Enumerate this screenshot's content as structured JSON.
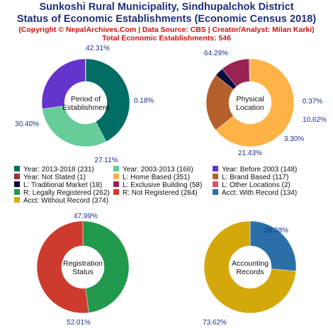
{
  "header": {
    "title_line1": "Sunkoshi Rural Municipality, Sindhupalchok District",
    "title_line2": "Status of Economic Establishments (Economic Census 2018)",
    "subtitle_line1": "(Copyright © NepalArchives.Com | Data Source: CBS | Creator/Analyst: Milan Karki)",
    "subtitle_line2": "Total Economic Establishments: 546"
  },
  "chart_data": [
    {
      "type": "pie",
      "title": "",
      "center_lines": [
        "Period of",
        "Establishment"
      ],
      "slices": [
        {
          "label": "Year: 2013-2018",
          "value": 231,
          "pct_label": "42.31%",
          "color": "#006d64"
        },
        {
          "label": "Year: 2003-2013",
          "value": 166,
          "pct_label": "30.40%",
          "color": "#66cc99"
        },
        {
          "label": "Year: Before 2003",
          "value": 148,
          "pct_label": "27.11%",
          "color": "#6633cc"
        },
        {
          "label": "Year: Not Stated",
          "value": 1,
          "pct_label": "0.18%",
          "color": "#993333"
        }
      ]
    },
    {
      "type": "pie",
      "title": "",
      "center_lines": [
        "Physical",
        "Location"
      ],
      "slices": [
        {
          "label": "L: Home Based",
          "value": 351,
          "pct_label": "64.29%",
          "color": "#ffb347"
        },
        {
          "label": "L: Brand Based",
          "value": 117,
          "pct_label": "21.43%",
          "color": "#b5602a"
        },
        {
          "label": "L: Traditional Market",
          "value": 18,
          "pct_label": "3.30%",
          "color": "#0b0b3b"
        },
        {
          "label": "L: Exclusive Building",
          "value": 58,
          "pct_label": "10.62%",
          "color": "#992255"
        },
        {
          "label": "L: Other Locations",
          "value": 2,
          "pct_label": "0.37%",
          "color": "#e0506a"
        }
      ]
    },
    {
      "type": "pie",
      "title": "",
      "center_lines": [
        "Registration",
        "Status"
      ],
      "slices": [
        {
          "label": "R: Legally Registered",
          "value": 262,
          "pct_label": "47.99%",
          "color": "#22994c"
        },
        {
          "label": "R: Not Registered",
          "value": 284,
          "pct_label": "52.01%",
          "color": "#cc3b2e"
        }
      ]
    },
    {
      "type": "pie",
      "title": "",
      "center_lines": [
        "Accounting",
        "Records"
      ],
      "slices": [
        {
          "label": "Acct: With Record",
          "value": 134,
          "pct_label": "26.38%",
          "color": "#2a6fa8"
        },
        {
          "label": "Acct: Without Record",
          "value": 374,
          "pct_label": "73.62%",
          "color": "#d4a80a"
        }
      ]
    }
  ],
  "legend": [
    {
      "text": "Year: 2013-2018 (231)",
      "color": "#006d64"
    },
    {
      "text": "Year: 2003-2013 (166)",
      "color": "#66cc99"
    },
    {
      "text": "Year: Before 2003 (148)",
      "color": "#6633cc"
    },
    {
      "text": "Year: Not Stated (1)",
      "color": "#993333"
    },
    {
      "text": "L: Home Based (351)",
      "color": "#ffb347"
    },
    {
      "text": "L: Brand Based (117)",
      "color": "#b5602a"
    },
    {
      "text": "L: Traditional Market (18)",
      "color": "#0b0b3b"
    },
    {
      "text": "L: Exclusive Building (58)",
      "color": "#992255"
    },
    {
      "text": "L: Other Locations (2)",
      "color": "#e0506a"
    },
    {
      "text": "R: Legally Registered (262)",
      "color": "#22994c"
    },
    {
      "text": "R: Not Registered (284)",
      "color": "#cc3b2e"
    },
    {
      "text": "Acct: With Record (134)",
      "color": "#2a6fa8"
    },
    {
      "text": "Acct: Without Record (374)",
      "color": "#d4a80a"
    }
  ]
}
